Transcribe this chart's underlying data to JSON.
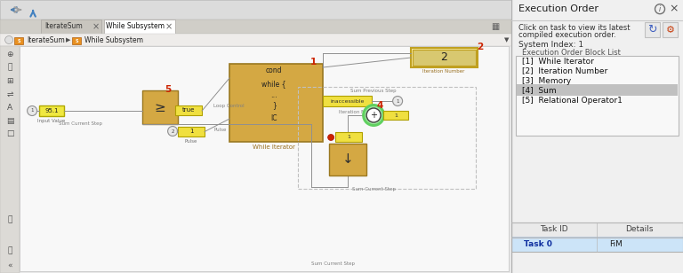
{
  "bg_color": "#e8e8e8",
  "toolbar_bg": "#e0e0e0",
  "tab_bar_bg": "#d4d0c8",
  "active_tab_bg": "#ffffff",
  "inactive_tab_bg": "#c8c4bc",
  "breadcrumb_bg": "#f0eeea",
  "canvas_bg": "#f5f5f5",
  "left_toolbar_bg": "#e0ddd8",
  "right_panel_bg": "#f0f0f0",
  "orange_block": "#d4a843",
  "orange_block_edge": "#a07820",
  "orange_block_light": "#e8c878",
  "yellow_block": "#f0e050",
  "yellow_block_edge": "#c0a800",
  "iter_num_bg": "#f5e898",
  "iter_num_edge": "#c0a020",
  "white_block": "#ffffff",
  "sum_glow_outer": "#60d060",
  "sum_glow_inner": "#a0e8a0",
  "sum_fill": "#ffffff",
  "memory_block": "#d4a843",
  "red_label": "#cc2200",
  "signal_line": "#909090",
  "inacc_bg": "#f0e040",
  "inacc_edge": "#c0a000",
  "large_dashed_border": "#b0b0b0",
  "port_circle_fill": "#e8e8e8",
  "port_circle_edge": "#808080",
  "list_highlight": "#c0c0c0",
  "table_row_bg": "#cce4f8",
  "exec_order": {
    "title": "Execution Order",
    "desc_line1": "Click on task to view its latest",
    "desc_line2": "compiled execution order.",
    "system_index": "System Index: 1",
    "list_title": "Execution Order Block List",
    "items": [
      "[1]  While Iterator",
      "[2]  Iteration Number",
      "[3]  Memory",
      "[4]  Sum",
      "[5]  Relational Operator1"
    ],
    "selected": 3,
    "table_headers": [
      "Task ID",
      "Details"
    ],
    "table_row": [
      "Task 0",
      "FiM"
    ]
  }
}
